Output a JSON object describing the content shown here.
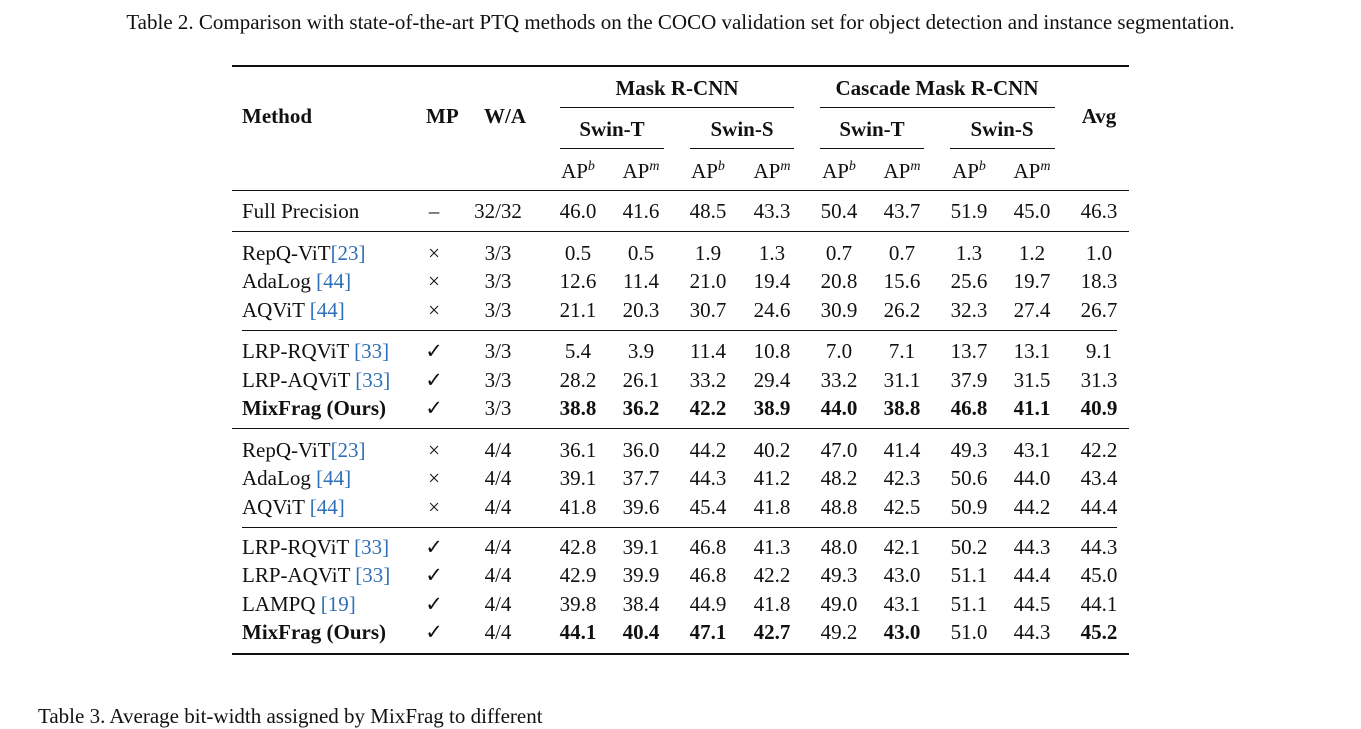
{
  "caption": "Table 2. Comparison with state-of-the-art PTQ methods on the COCO validation set for object detection and instance segmentation.",
  "header": {
    "method": "Method",
    "mp": "MP",
    "wa": "W/A",
    "avg": "Avg",
    "groups": [
      {
        "label": "Mask R-CNN",
        "backbones": [
          "Swin-T",
          "Swin-S"
        ]
      },
      {
        "label": "Cascade Mask R-CNN",
        "backbones": [
          "Swin-T",
          "Swin-S"
        ]
      }
    ],
    "metric_base": "AP",
    "metric_sups": [
      "b",
      "m"
    ]
  },
  "rows": [
    {
      "method": "Full Precision",
      "ref": "",
      "mp": "–",
      "wa": "32/32",
      "vals": [
        "46.0",
        "41.6",
        "48.5",
        "43.3",
        "50.4",
        "43.7",
        "51.9",
        "45.0",
        "46.3"
      ],
      "bold": [],
      "bold_method": false
    },
    {
      "method": "RepQ-ViT",
      "ref": "[23]",
      "mp": "×",
      "wa": "3/3",
      "vals": [
        "0.5",
        "0.5",
        "1.9",
        "1.3",
        "0.7",
        "0.7",
        "1.3",
        "1.2",
        "1.0"
      ],
      "bold": [],
      "bold_method": false
    },
    {
      "method": "AdaLog ",
      "ref": "[44]",
      "mp": "×",
      "wa": "3/3",
      "vals": [
        "12.6",
        "11.4",
        "21.0",
        "19.4",
        "20.8",
        "15.6",
        "25.6",
        "19.7",
        "18.3"
      ],
      "bold": [],
      "bold_method": false
    },
    {
      "method": "AQViT ",
      "ref": "[44]",
      "mp": "×",
      "wa": "3/3",
      "vals": [
        "21.1",
        "20.3",
        "30.7",
        "24.6",
        "30.9",
        "26.2",
        "32.3",
        "27.4",
        "26.7"
      ],
      "bold": [],
      "bold_method": false
    },
    {
      "method": "LRP-RQViT ",
      "ref": "[33]",
      "mp": "✓",
      "wa": "3/3",
      "vals": [
        "5.4",
        "3.9",
        "11.4",
        "10.8",
        "7.0",
        "7.1",
        "13.7",
        "13.1",
        "9.1"
      ],
      "bold": [],
      "bold_method": false
    },
    {
      "method": "LRP-AQViT ",
      "ref": "[33]",
      "mp": "✓",
      "wa": "3/3",
      "vals": [
        "28.2",
        "26.1",
        "33.2",
        "29.4",
        "33.2",
        "31.1",
        "37.9",
        "31.5",
        "31.3"
      ],
      "bold": [],
      "bold_method": false
    },
    {
      "method": "MixFrag (Ours)",
      "ref": "",
      "mp": "✓",
      "wa": "3/3",
      "vals": [
        "38.8",
        "36.2",
        "42.2",
        "38.9",
        "44.0",
        "38.8",
        "46.8",
        "41.1",
        "40.9"
      ],
      "bold": [
        0,
        1,
        2,
        3,
        4,
        5,
        6,
        7,
        8
      ],
      "bold_method": true
    },
    {
      "method": "RepQ-ViT",
      "ref": "[23]",
      "mp": "×",
      "wa": "4/4",
      "vals": [
        "36.1",
        "36.0",
        "44.2",
        "40.2",
        "47.0",
        "41.4",
        "49.3",
        "43.1",
        "42.2"
      ],
      "bold": [],
      "bold_method": false
    },
    {
      "method": "AdaLog ",
      "ref": "[44]",
      "mp": "×",
      "wa": "4/4",
      "vals": [
        "39.1",
        "37.7",
        "44.3",
        "41.2",
        "48.2",
        "42.3",
        "50.6",
        "44.0",
        "43.4"
      ],
      "bold": [],
      "bold_method": false
    },
    {
      "method": "AQViT ",
      "ref": "[44]",
      "mp": "×",
      "wa": "4/4",
      "vals": [
        "41.8",
        "39.6",
        "45.4",
        "41.8",
        "48.8",
        "42.5",
        "50.9",
        "44.2",
        "44.4"
      ],
      "bold": [],
      "bold_method": false
    },
    {
      "method": "LRP-RQViT ",
      "ref": "[33]",
      "mp": "✓",
      "wa": "4/4",
      "vals": [
        "42.8",
        "39.1",
        "46.8",
        "41.3",
        "48.0",
        "42.1",
        "50.2",
        "44.3",
        "44.3"
      ],
      "bold": [],
      "bold_method": false
    },
    {
      "method": "LRP-AQViT ",
      "ref": "[33]",
      "mp": "✓",
      "wa": "4/4",
      "vals": [
        "42.9",
        "39.9",
        "46.8",
        "42.2",
        "49.3",
        "43.0",
        "51.1",
        "44.4",
        "45.0"
      ],
      "bold": [],
      "bold_method": false
    },
    {
      "method": "LAMPQ ",
      "ref": "[19]",
      "mp": "✓",
      "wa": "4/4",
      "vals": [
        "39.8",
        "38.4",
        "44.9",
        "41.8",
        "49.0",
        "43.1",
        "51.1",
        "44.5",
        "44.1"
      ],
      "bold": [],
      "bold_method": false
    },
    {
      "method": "MixFrag (Ours)",
      "ref": "",
      "mp": "✓",
      "wa": "4/4",
      "vals": [
        "44.1",
        "40.4",
        "47.1",
        "42.7",
        "49.2",
        "43.0",
        "51.0",
        "44.3",
        "45.2"
      ],
      "bold": [
        0,
        1,
        2,
        3,
        5,
        8
      ],
      "bold_method": true
    }
  ],
  "footer": "Table 3.   Average bit-width assigned by MixFrag to different"
}
